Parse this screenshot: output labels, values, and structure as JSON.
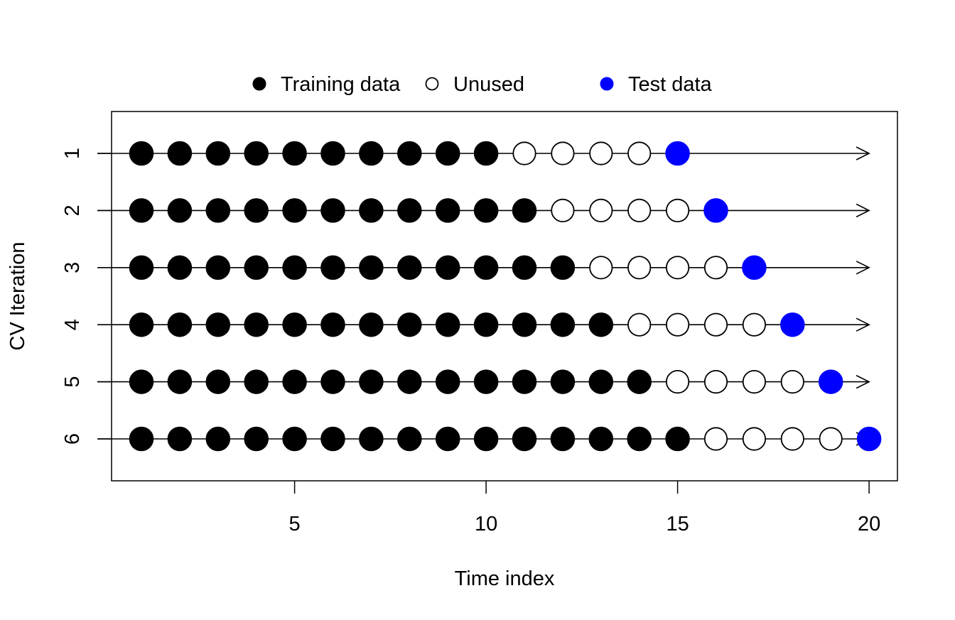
{
  "chart_data": {
    "type": "scatter",
    "title": "",
    "xlabel": "Time index",
    "ylabel": "CV Iteration",
    "xlim": [
      0.2,
      20.8
    ],
    "ylim": [
      0.3,
      6.7
    ],
    "x_ticks": [
      5,
      10,
      15,
      20
    ],
    "x_tick_labels": [
      "5",
      "10",
      "15",
      "20"
    ],
    "y_ticks": [
      1,
      2,
      3,
      4,
      5,
      6
    ],
    "y_tick_labels": [
      "1",
      "2",
      "3",
      "4",
      "5",
      "6"
    ],
    "y_reversed": true,
    "grid": false,
    "legend_position": "top-center, outside plot",
    "legend": [
      {
        "name": "Training data",
        "style": "filled",
        "color": "#000000"
      },
      {
        "name": "Unused",
        "style": "open",
        "color": "#000000"
      },
      {
        "name": "Test data",
        "style": "filled",
        "color": "#0000ff"
      }
    ],
    "arrow_end_x": 20,
    "iterations": [
      {
        "iteration": 1,
        "training": [
          1,
          2,
          3,
          4,
          5,
          6,
          7,
          8,
          9,
          10
        ],
        "unused": [
          11,
          12,
          13,
          14
        ],
        "test": [
          15
        ]
      },
      {
        "iteration": 2,
        "training": [
          1,
          2,
          3,
          4,
          5,
          6,
          7,
          8,
          9,
          10,
          11
        ],
        "unused": [
          12,
          13,
          14,
          15
        ],
        "test": [
          16
        ]
      },
      {
        "iteration": 3,
        "training": [
          1,
          2,
          3,
          4,
          5,
          6,
          7,
          8,
          9,
          10,
          11,
          12
        ],
        "unused": [
          13,
          14,
          15,
          16
        ],
        "test": [
          17
        ]
      },
      {
        "iteration": 4,
        "training": [
          1,
          2,
          3,
          4,
          5,
          6,
          7,
          8,
          9,
          10,
          11,
          12,
          13
        ],
        "unused": [
          14,
          15,
          16,
          17
        ],
        "test": [
          18
        ]
      },
      {
        "iteration": 5,
        "training": [
          1,
          2,
          3,
          4,
          5,
          6,
          7,
          8,
          9,
          10,
          11,
          12,
          13,
          14
        ],
        "unused": [
          15,
          16,
          17,
          18
        ],
        "test": [
          19
        ]
      },
      {
        "iteration": 6,
        "training": [
          1,
          2,
          3,
          4,
          5,
          6,
          7,
          8,
          9,
          10,
          11,
          12,
          13,
          14,
          15
        ],
        "unused": [
          16,
          17,
          18,
          19
        ],
        "test": [
          20
        ]
      }
    ]
  }
}
